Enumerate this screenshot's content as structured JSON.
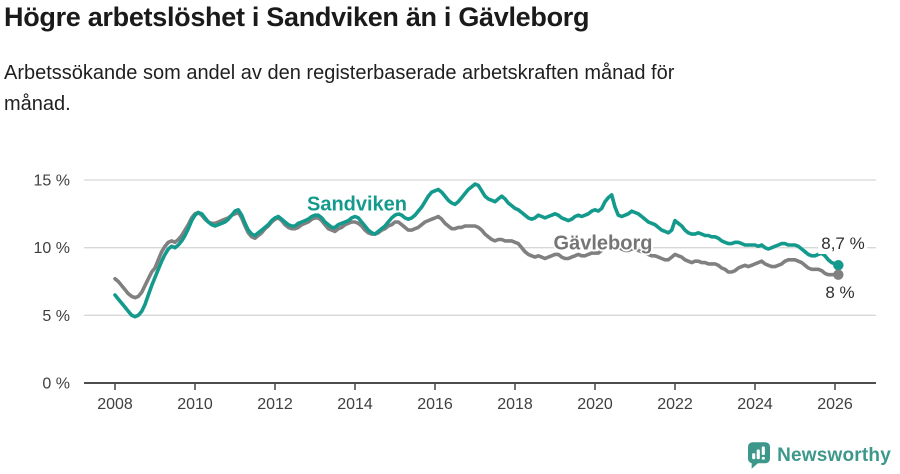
{
  "title": "Högre arbetslöshet i Sandviken än i Gävleborg",
  "subtitle": "Arbetssökande som andel av den registerbaserade arbetskraften månad för\nmånad.",
  "footer": {
    "brand": "Newsworthy",
    "icon": "newsworthy-speech-bubble-bar-chart-icon",
    "brand_color": "#3d988b"
  },
  "colors": {
    "sandviken_line": "#149a8c",
    "gavleborg_line": "#808080",
    "gridline": "#d8d8d8",
    "axis": "#4d4d4d",
    "tick_text": "#404040",
    "title_text": "#1a1a1a"
  },
  "chart_data": {
    "type": "line",
    "title": "Högre arbetslöshet i Sandviken än i Gävleborg",
    "subtitle": "Arbetssökande som andel av den registerbaserade arbetskraften månad för månad.",
    "frequency": "monthly",
    "x_start": "2008-01",
    "x_end": "2026-02",
    "ylim": [
      0,
      15
    ],
    "grid": "horizontal",
    "legend_position": "inline-labels",
    "y_ticks": {
      "values": [
        0,
        5,
        10,
        15
      ],
      "labels": [
        "0 %",
        "5 %",
        "10 %",
        "15 %"
      ]
    },
    "x_ticks": [
      2008,
      2010,
      2012,
      2014,
      2016,
      2018,
      2020,
      2022,
      2024,
      2026
    ],
    "series": [
      {
        "name": "Sandviken",
        "color": "#149a8c",
        "end_label": "8,7 %",
        "end_value": 8.7,
        "values": [
          6.5,
          6.2,
          5.9,
          5.6,
          5.3,
          5.0,
          4.9,
          5.0,
          5.3,
          5.8,
          6.5,
          7.2,
          7.8,
          8.4,
          9.0,
          9.5,
          9.9,
          10.1,
          10.0,
          10.2,
          10.5,
          10.9,
          11.4,
          12.0,
          12.4,
          12.6,
          12.5,
          12.2,
          11.9,
          11.7,
          11.6,
          11.7,
          11.8,
          11.9,
          12.1,
          12.4,
          12.7,
          12.8,
          12.4,
          11.8,
          11.3,
          11.0,
          10.9,
          11.1,
          11.3,
          11.5,
          11.7,
          12.0,
          12.2,
          12.3,
          12.1,
          11.9,
          11.7,
          11.6,
          11.6,
          11.8,
          11.9,
          12.0,
          12.1,
          12.3,
          12.4,
          12.4,
          12.2,
          11.9,
          11.7,
          11.5,
          11.5,
          11.7,
          11.8,
          11.9,
          12.0,
          12.2,
          12.3,
          12.2,
          11.9,
          11.6,
          11.3,
          11.1,
          11.0,
          11.2,
          11.4,
          11.6,
          11.9,
          12.2,
          12.4,
          12.5,
          12.4,
          12.2,
          12.1,
          12.2,
          12.4,
          12.7,
          13.0,
          13.4,
          13.8,
          14.1,
          14.2,
          14.3,
          14.1,
          13.8,
          13.5,
          13.3,
          13.2,
          13.4,
          13.7,
          14.0,
          14.3,
          14.5,
          14.7,
          14.6,
          14.2,
          13.8,
          13.6,
          13.5,
          13.4,
          13.6,
          13.8,
          13.6,
          13.3,
          13.1,
          12.9,
          12.8,
          12.6,
          12.4,
          12.2,
          12.1,
          12.2,
          12.4,
          12.3,
          12.2,
          12.3,
          12.4,
          12.5,
          12.4,
          12.2,
          12.1,
          12.0,
          12.1,
          12.3,
          12.4,
          12.3,
          12.4,
          12.5,
          12.7,
          12.8,
          12.7,
          12.9,
          13.4,
          13.7,
          13.9,
          13.0,
          12.4,
          12.3,
          12.4,
          12.5,
          12.7,
          12.6,
          12.5,
          12.3,
          12.1,
          11.9,
          11.8,
          11.7,
          11.5,
          11.3,
          11.2,
          11.1,
          11.3,
          12.0,
          11.8,
          11.6,
          11.3,
          11.1,
          11.0,
          11.0,
          11.1,
          11.0,
          10.9,
          10.9,
          10.8,
          10.8,
          10.7,
          10.5,
          10.4,
          10.3,
          10.3,
          10.4,
          10.4,
          10.3,
          10.2,
          10.2,
          10.2,
          10.2,
          10.1,
          10.2,
          10.0,
          9.9,
          10.0,
          10.1,
          10.2,
          10.3,
          10.3,
          10.2,
          10.2,
          10.2,
          10.1,
          9.9,
          9.7,
          9.5,
          9.4,
          9.4,
          9.5,
          9.6,
          9.4,
          9.1,
          8.9,
          8.8,
          8.7
        ]
      },
      {
        "name": "Gävleborg",
        "color": "#808080",
        "end_label": "8 %",
        "end_value": 8.0,
        "values": [
          7.7,
          7.5,
          7.2,
          6.9,
          6.6,
          6.4,
          6.3,
          6.4,
          6.7,
          7.2,
          7.7,
          8.2,
          8.5,
          9.1,
          9.7,
          10.1,
          10.4,
          10.5,
          10.4,
          10.6,
          10.9,
          11.3,
          11.7,
          12.2,
          12.5,
          12.6,
          12.4,
          12.1,
          11.9,
          11.8,
          11.8,
          11.9,
          12.0,
          12.1,
          12.2,
          12.4,
          12.5,
          12.6,
          12.2,
          11.6,
          11.1,
          10.8,
          10.7,
          10.9,
          11.1,
          11.4,
          11.6,
          11.9,
          12.1,
          12.2,
          12.0,
          11.7,
          11.5,
          11.4,
          11.4,
          11.5,
          11.7,
          11.8,
          11.9,
          12.1,
          12.2,
          12.2,
          12.0,
          11.7,
          11.4,
          11.3,
          11.2,
          11.4,
          11.5,
          11.7,
          11.8,
          11.9,
          11.9,
          11.8,
          11.6,
          11.3,
          11.1,
          11.0,
          11.0,
          11.1,
          11.3,
          11.4,
          11.6,
          11.7,
          11.9,
          11.9,
          11.7,
          11.5,
          11.3,
          11.3,
          11.4,
          11.5,
          11.7,
          11.9,
          12.0,
          12.1,
          12.2,
          12.3,
          12.1,
          11.8,
          11.6,
          11.4,
          11.4,
          11.5,
          11.5,
          11.6,
          11.6,
          11.6,
          11.6,
          11.5,
          11.3,
          11.0,
          10.8,
          10.6,
          10.5,
          10.6,
          10.6,
          10.5,
          10.5,
          10.5,
          10.4,
          10.3,
          10.0,
          9.7,
          9.5,
          9.4,
          9.3,
          9.4,
          9.3,
          9.2,
          9.3,
          9.4,
          9.5,
          9.5,
          9.3,
          9.2,
          9.2,
          9.3,
          9.4,
          9.5,
          9.4,
          9.4,
          9.5,
          9.6,
          9.6,
          9.6,
          9.8,
          10.1,
          10.3,
          10.4,
          10.3,
          10.1,
          9.9,
          9.8,
          9.8,
          9.9,
          9.9,
          9.8,
          9.7,
          9.6,
          9.5,
          9.4,
          9.4,
          9.3,
          9.2,
          9.1,
          9.1,
          9.3,
          9.5,
          9.4,
          9.3,
          9.1,
          9.0,
          8.9,
          9.0,
          9.0,
          8.9,
          8.9,
          8.8,
          8.8,
          8.8,
          8.7,
          8.5,
          8.4,
          8.2,
          8.2,
          8.3,
          8.5,
          8.6,
          8.7,
          8.6,
          8.7,
          8.8,
          8.9,
          9.0,
          8.8,
          8.7,
          8.6,
          8.6,
          8.7,
          8.8,
          9.0,
          9.1,
          9.1,
          9.1,
          9.0,
          8.9,
          8.7,
          8.5,
          8.4,
          8.4,
          8.4,
          8.3,
          8.1,
          8.0,
          8.0,
          8.0,
          8.0
        ]
      }
    ]
  }
}
